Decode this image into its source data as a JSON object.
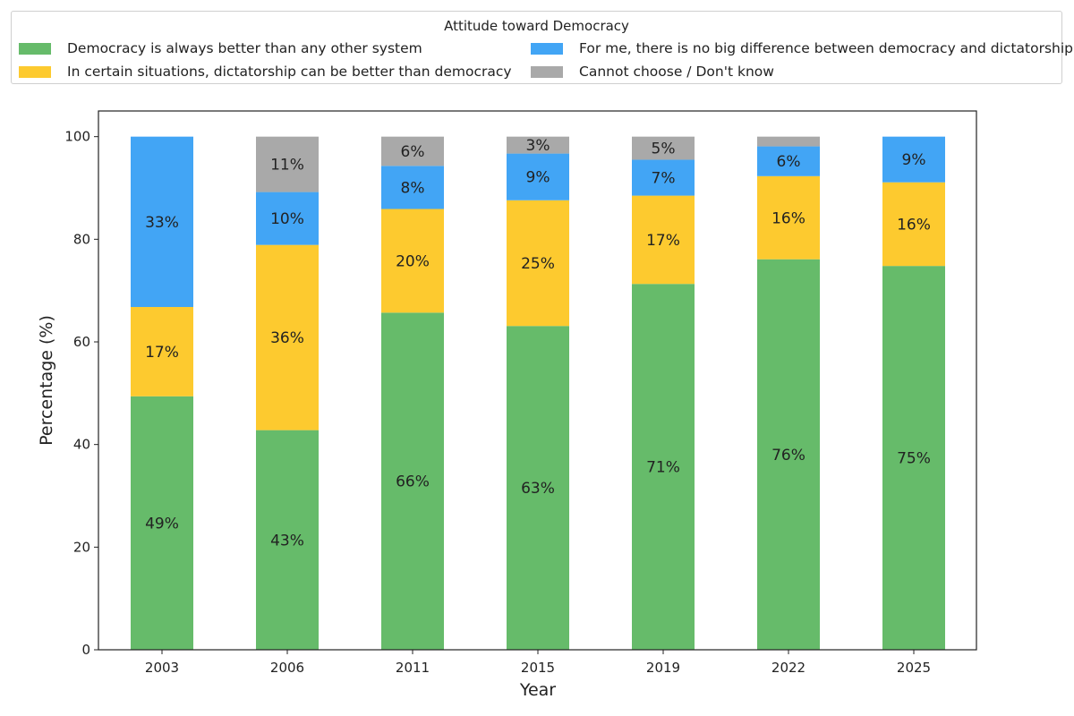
{
  "colors": {
    "green": "#66bb6a",
    "yellow": "#fdca2f",
    "blue": "#42a5f5",
    "gray": "#a9a9a9"
  },
  "legend": {
    "title": "Attitude toward Democracy",
    "items": [
      {
        "label": "Democracy is always better than any other system",
        "color": "#66bb6a"
      },
      {
        "label": "In certain situations, dictatorship can be better than democracy",
        "color": "#fdca2f"
      },
      {
        "label": "For me, there is no big difference between democracy and dictatorship",
        "color": "#42a5f5"
      },
      {
        "label": "Cannot choose / Don't know",
        "color": "#a9a9a9"
      }
    ]
  },
  "chart_data": {
    "type": "bar",
    "stacked": true,
    "categories": [
      "2003",
      "2006",
      "2011",
      "2015",
      "2019",
      "2022",
      "2025"
    ],
    "series": [
      {
        "name": "Democracy is always better than any other system",
        "color": "#66bb6a",
        "values": [
          49.4,
          42.8,
          65.7,
          63.1,
          71.3,
          76.1,
          74.8
        ],
        "labels": [
          "49%",
          "43%",
          "66%",
          "63%",
          "71%",
          "76%",
          "75%"
        ]
      },
      {
        "name": "In certain situations, dictatorship can be better than democracy",
        "color": "#fdca2f",
        "values": [
          17.4,
          36.1,
          20.2,
          24.5,
          17.2,
          16.2,
          16.3
        ],
        "labels": [
          "17%",
          "36%",
          "20%",
          "25%",
          "17%",
          "16%",
          "16%"
        ]
      },
      {
        "name": "For me, there is no big difference between democracy and dictatorship",
        "color": "#42a5f5",
        "values": [
          33.2,
          10.3,
          8.4,
          9.1,
          7.0,
          5.8,
          8.9
        ],
        "labels": [
          "33%",
          "10%",
          "8%",
          "9%",
          "7%",
          "6%",
          "9%"
        ]
      },
      {
        "name": "Cannot choose / Don't know",
        "color": "#a9a9a9",
        "values": [
          0,
          10.8,
          5.7,
          3.3,
          4.5,
          1.9,
          0
        ],
        "labels": [
          "",
          "11%",
          "6%",
          "3%",
          "5%",
          "",
          ""
        ]
      }
    ],
    "xlabel": "Year",
    "ylabel": "Percentage (%)",
    "ylim": [
      0,
      100
    ],
    "yticks": [
      0,
      20,
      40,
      60,
      80,
      100
    ],
    "grid": false,
    "legend_position": "top"
  }
}
